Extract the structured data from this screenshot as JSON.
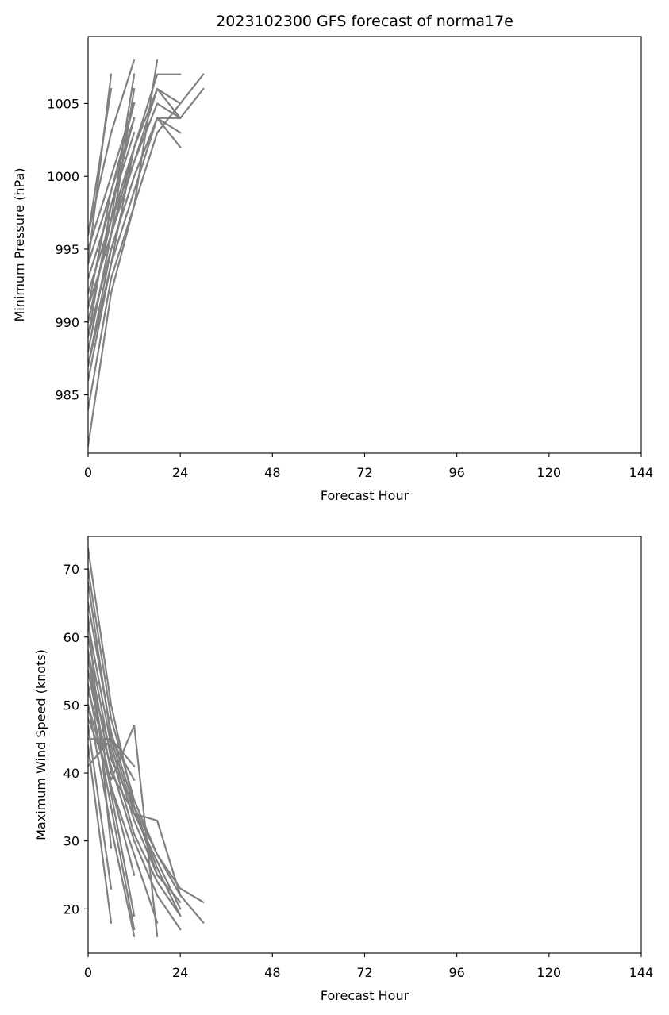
{
  "title": "2023102300 GFS forecast of norma17e",
  "line_color": "#808080",
  "chart_data": [
    {
      "type": "line",
      "xlabel": "Forecast Hour",
      "ylabel": "Minimum Pressure (hPa)",
      "xlim": [
        0,
        144
      ],
      "ylim": [
        981,
        1009.6
      ],
      "xticks": [
        0,
        24,
        48,
        72,
        96,
        120,
        144
      ],
      "yticks": [
        985,
        990,
        995,
        1000,
        1005
      ],
      "grid": false,
      "series": [
        {
          "x": [
            0,
            6,
            12,
            18
          ],
          "y": [
            981.5,
            992,
            998,
            1008
          ]
        },
        {
          "x": [
            0,
            6,
            12,
            18,
            24
          ],
          "y": [
            984,
            993,
            998,
            1003,
            1005
          ]
        },
        {
          "x": [
            0,
            6,
            12,
            18,
            24
          ],
          "y": [
            986,
            994,
            999,
            1004,
            1003
          ]
        },
        {
          "x": [
            0,
            6,
            12,
            18,
            24
          ],
          "y": [
            987,
            995,
            1000,
            1004,
            1002
          ]
        },
        {
          "x": [
            0,
            6,
            12,
            18,
            24
          ],
          "y": [
            988,
            996,
            1001,
            1006,
            1004
          ]
        },
        {
          "x": [
            0,
            6,
            12,
            18,
            24
          ],
          "y": [
            989,
            995,
            1000,
            1004,
            1004
          ]
        },
        {
          "x": [
            0,
            6,
            12,
            18,
            24,
            30
          ],
          "y": [
            990,
            997,
            1001,
            1005,
            1004,
            1006
          ]
        },
        {
          "x": [
            0,
            6,
            12,
            18,
            24,
            30
          ],
          "y": [
            991,
            996,
            1002,
            1006,
            1005,
            1007
          ]
        },
        {
          "x": [
            0,
            6,
            12,
            18,
            24
          ],
          "y": [
            992,
            997,
            1002,
            1007,
            1007
          ]
        },
        {
          "x": [
            0,
            6,
            12
          ],
          "y": [
            993,
            998,
            1003
          ]
        },
        {
          "x": [
            0,
            6,
            12
          ],
          "y": [
            994,
            999,
            1004
          ]
        },
        {
          "x": [
            0,
            6,
            12
          ],
          "y": [
            995,
            1000,
            1005
          ]
        },
        {
          "x": [
            0,
            6,
            12
          ],
          "y": [
            996,
            1003,
            1008
          ]
        },
        {
          "x": [
            0,
            6
          ],
          "y": [
            994,
            1007
          ]
        },
        {
          "x": [
            0,
            6
          ],
          "y": [
            996,
            1006
          ]
        },
        {
          "x": [
            0,
            6,
            12
          ],
          "y": [
            990,
            997,
            1007
          ]
        },
        {
          "x": [
            0,
            6,
            12
          ],
          "y": [
            988,
            996,
            1006
          ]
        },
        {
          "x": [
            0,
            6,
            12
          ],
          "y": [
            989,
            998,
            1004
          ]
        },
        {
          "x": [
            0,
            6,
            12
          ],
          "y": [
            991,
            999,
            1005
          ]
        },
        {
          "x": [
            0,
            6,
            12
          ],
          "y": [
            987,
            994,
            1002
          ]
        }
      ]
    },
    {
      "type": "line",
      "xlabel": "Forecast Hour",
      "ylabel": "Maximum Wind Speed (knots)",
      "xlim": [
        0,
        144
      ],
      "ylim": [
        13.5,
        74.8
      ],
      "xticks": [
        0,
        24,
        48,
        72,
        96,
        120,
        144
      ],
      "yticks": [
        20,
        30,
        40,
        50,
        60,
        70
      ],
      "grid": false,
      "series": [
        {
          "x": [
            0,
            6,
            12,
            18
          ],
          "y": [
            73,
            50,
            35,
            25
          ]
        },
        {
          "x": [
            0,
            6,
            12,
            18,
            24
          ],
          "y": [
            70,
            48,
            36,
            28,
            22
          ]
        },
        {
          "x": [
            0,
            6,
            12,
            18,
            24
          ],
          "y": [
            68,
            45,
            34,
            27,
            20
          ]
        },
        {
          "x": [
            0,
            6,
            12,
            18,
            24
          ],
          "y": [
            65,
            46,
            35,
            26,
            19
          ]
        },
        {
          "x": [
            0,
            6,
            12,
            18,
            24
          ],
          "y": [
            62,
            44,
            33,
            25,
            21
          ]
        },
        {
          "x": [
            0,
            6,
            12,
            18,
            24,
            30
          ],
          "y": [
            60,
            42,
            35,
            28,
            23,
            21
          ]
        },
        {
          "x": [
            0,
            6,
            12,
            18,
            24,
            30
          ],
          "y": [
            58,
            40,
            34,
            33,
            22,
            18
          ]
        },
        {
          "x": [
            0,
            6,
            12,
            18,
            24
          ],
          "y": [
            55,
            43,
            31,
            24,
            19
          ]
        },
        {
          "x": [
            0,
            6,
            12,
            18,
            24
          ],
          "y": [
            52,
            41,
            30,
            22,
            17
          ]
        },
        {
          "x": [
            0,
            6,
            12,
            18
          ],
          "y": [
            50,
            38,
            28,
            18
          ]
        },
        {
          "x": [
            0,
            6,
            12,
            18
          ],
          "y": [
            48,
            39,
            47,
            16
          ]
        },
        {
          "x": [
            0,
            6,
            12
          ],
          "y": [
            45,
            45,
            41
          ]
        },
        {
          "x": [
            0,
            6,
            12
          ],
          "y": [
            41,
            45,
            39
          ]
        },
        {
          "x": [
            0,
            6,
            12
          ],
          "y": [
            55,
            38,
            25
          ]
        },
        {
          "x": [
            0,
            6,
            12
          ],
          "y": [
            57,
            37,
            19
          ]
        },
        {
          "x": [
            0,
            6,
            12
          ],
          "y": [
            53,
            35,
            17
          ]
        },
        {
          "x": [
            0,
            6,
            12
          ],
          "y": [
            50,
            32,
            16
          ]
        },
        {
          "x": [
            0,
            6
          ],
          "y": [
            47,
            23
          ]
        },
        {
          "x": [
            0,
            6
          ],
          "y": [
            44,
            18
          ]
        },
        {
          "x": [
            0,
            6
          ],
          "y": [
            63,
            29
          ]
        }
      ]
    }
  ]
}
